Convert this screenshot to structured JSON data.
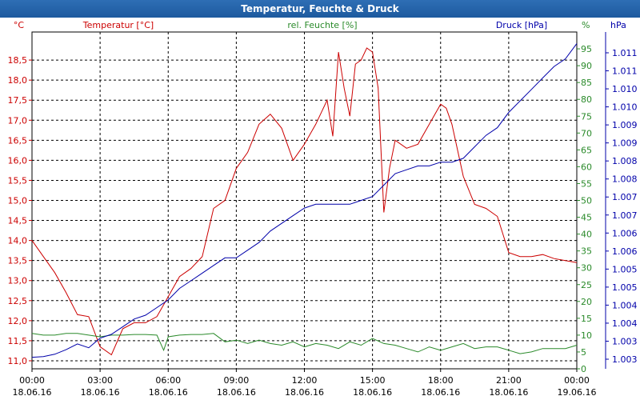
{
  "window": {
    "title": "Temperatur, Feuchte & Druck"
  },
  "chart_data": {
    "type": "line",
    "title": "Temperatur, Feuchte & Druck",
    "series": [
      {
        "name": "Temperatur [°C]",
        "unit": "°C",
        "color": "#cc0000",
        "axis": "left",
        "x": [
          0,
          0.5,
          1,
          1.5,
          2,
          2.5,
          3,
          3.5,
          4,
          4.5,
          5,
          5.5,
          6,
          6.5,
          7,
          7.5,
          8,
          8.5,
          9,
          9.5,
          10,
          10.5,
          11,
          11.5,
          12,
          12.5,
          13,
          13.25,
          13.5,
          13.75,
          14,
          14.25,
          14.5,
          14.75,
          15,
          15.25,
          15.5,
          15.75,
          16,
          16.5,
          17,
          17.5,
          18,
          18.25,
          18.5,
          19,
          19.5,
          20,
          20.5,
          21,
          21.5,
          22,
          22.5,
          23,
          23.5,
          24
        ],
        "values": [
          14.0,
          13.6,
          13.2,
          12.7,
          12.15,
          12.1,
          11.35,
          11.15,
          11.8,
          11.95,
          11.95,
          12.1,
          12.6,
          13.1,
          13.3,
          13.6,
          14.8,
          15.0,
          15.8,
          16.2,
          16.9,
          17.15,
          16.8,
          16.0,
          16.4,
          16.9,
          17.5,
          16.6,
          18.7,
          17.8,
          17.1,
          18.4,
          18.5,
          18.8,
          18.7,
          17.8,
          14.7,
          15.8,
          16.5,
          16.3,
          16.4,
          16.9,
          17.4,
          17.3,
          16.9,
          15.6,
          14.9,
          14.8,
          14.6,
          13.7,
          13.6,
          13.6,
          13.65,
          13.55,
          13.5,
          13.45
        ]
      },
      {
        "name": "rel. Feuchte [%]",
        "unit": "%",
        "color": "#2a8a2a",
        "axis": "right",
        "x": [
          0,
          0.5,
          1,
          1.5,
          2,
          2.5,
          3,
          3.5,
          4,
          4.5,
          5,
          5.5,
          5.8,
          6,
          6.5,
          7,
          7.5,
          8,
          8.5,
          9,
          9.5,
          10,
          10.5,
          11,
          11.5,
          12,
          12.5,
          13,
          13.5,
          14,
          14.5,
          15,
          15.5,
          16,
          16.5,
          17,
          17.5,
          18,
          18.5,
          19,
          19.5,
          20,
          20.5,
          21,
          21.5,
          22,
          22.5,
          23,
          23.5,
          24
        ],
        "values": [
          10.5,
          10,
          10,
          10.5,
          10.5,
          10,
          9.5,
          10,
          10,
          10.2,
          10.2,
          10,
          5.5,
          9.5,
          10,
          10.2,
          10.2,
          10.5,
          8,
          8.5,
          7.5,
          8.5,
          7.5,
          7,
          8,
          6.5,
          7.5,
          7,
          6,
          8,
          7,
          9,
          7.5,
          7,
          6,
          5,
          6.5,
          5.5,
          6.5,
          7.5,
          6,
          6.5,
          6.5,
          5.5,
          4.5,
          5,
          6,
          6,
          6,
          7
        ]
      },
      {
        "name": "Druck [hPa]",
        "unit": "hPa",
        "color": "#0000aa",
        "axis": "right2",
        "x": [
          0,
          0.5,
          1,
          1.5,
          2,
          2.5,
          3,
          3.5,
          4,
          4.5,
          5,
          5.5,
          6,
          6.5,
          7,
          7.5,
          8,
          8.5,
          9,
          9.5,
          10,
          10.5,
          11,
          11.5,
          12,
          12.5,
          13,
          13.5,
          14,
          14.5,
          15,
          15.5,
          16,
          16.5,
          17,
          17.5,
          18,
          18.5,
          19,
          19.5,
          20,
          20.5,
          21,
          21.5,
          22,
          22.5,
          23,
          23.5,
          24
        ],
        "values": [
          1.0029,
          1.00292,
          1.00298,
          1.0031,
          1.00325,
          1.00315,
          1.0034,
          1.0035,
          1.0037,
          1.0039,
          1.004,
          1.0042,
          1.0044,
          1.0047,
          1.0049,
          1.0051,
          1.0053,
          1.0055,
          1.0055,
          1.0057,
          1.0059,
          1.0062,
          1.0064,
          1.0066,
          1.0068,
          1.0069,
          1.0069,
          1.0069,
          1.0069,
          1.007,
          1.0071,
          1.0074,
          1.0077,
          1.0078,
          1.0079,
          1.0079,
          1.008,
          1.008,
          1.0081,
          1.0084,
          1.0087,
          1.0089,
          1.0093,
          1.0096,
          1.0099,
          1.0102,
          1.0105,
          1.0107,
          1.0111
        ]
      }
    ],
    "x_ticks": [
      {
        "time": "00:00",
        "date": "18.06.16"
      },
      {
        "time": "03:00",
        "date": "18.06.16"
      },
      {
        "time": "06:00",
        "date": "18.06.16"
      },
      {
        "time": "09:00",
        "date": "18.06.16"
      },
      {
        "time": "12:00",
        "date": "18.06.16"
      },
      {
        "time": "15:00",
        "date": "18.06.16"
      },
      {
        "time": "18:00",
        "date": "18.06.16"
      },
      {
        "time": "21:00",
        "date": "18.06.16"
      },
      {
        "time": "00:00",
        "date": "19.06.16"
      }
    ],
    "xlim": [
      0,
      24
    ],
    "axes": {
      "left": {
        "label": "Temperatur [°C]",
        "unit_label": "°C",
        "ylim": [
          10.8,
          19.2
        ],
        "ticks": [
          "11,0",
          "11,5",
          "12,0",
          "12,5",
          "13,0",
          "13,5",
          "14,0",
          "14,5",
          "15,0",
          "15,5",
          "16,0",
          "16,5",
          "17,0",
          "17,5",
          "18,0",
          "18,5"
        ],
        "tick_values": [
          11.0,
          11.5,
          12.0,
          12.5,
          13.0,
          13.5,
          14.0,
          14.5,
          15.0,
          15.5,
          16.0,
          16.5,
          17.0,
          17.5,
          18.0,
          18.5
        ]
      },
      "right": {
        "label": "rel. Feuchte [%]",
        "unit_label": "%",
        "ylim": [
          0,
          100
        ],
        "ticks": [
          "0",
          "5",
          "10",
          "15",
          "20",
          "25",
          "30",
          "35",
          "40",
          "45",
          "50",
          "55",
          "60",
          "65",
          "70",
          "75",
          "80",
          "85",
          "90",
          "95"
        ],
        "tick_values": [
          0,
          5,
          10,
          15,
          20,
          25,
          30,
          35,
          40,
          45,
          50,
          55,
          60,
          65,
          70,
          75,
          80,
          85,
          90,
          95
        ]
      },
      "right2": {
        "label": "Druck [hPa]",
        "unit_label": "hPa",
        "ticks": [
          "1.011",
          "1.011",
          "1.010",
          "1.010",
          "1.009",
          "1.009",
          "1.008",
          "1.008",
          "1.007",
          "1.007",
          "1.006",
          "1.006",
          "1.005",
          "1.005",
          "1.004",
          "1.004",
          "1.003",
          "1.003"
        ]
      }
    },
    "grid": true,
    "xlabel": "",
    "ylabel": ""
  }
}
